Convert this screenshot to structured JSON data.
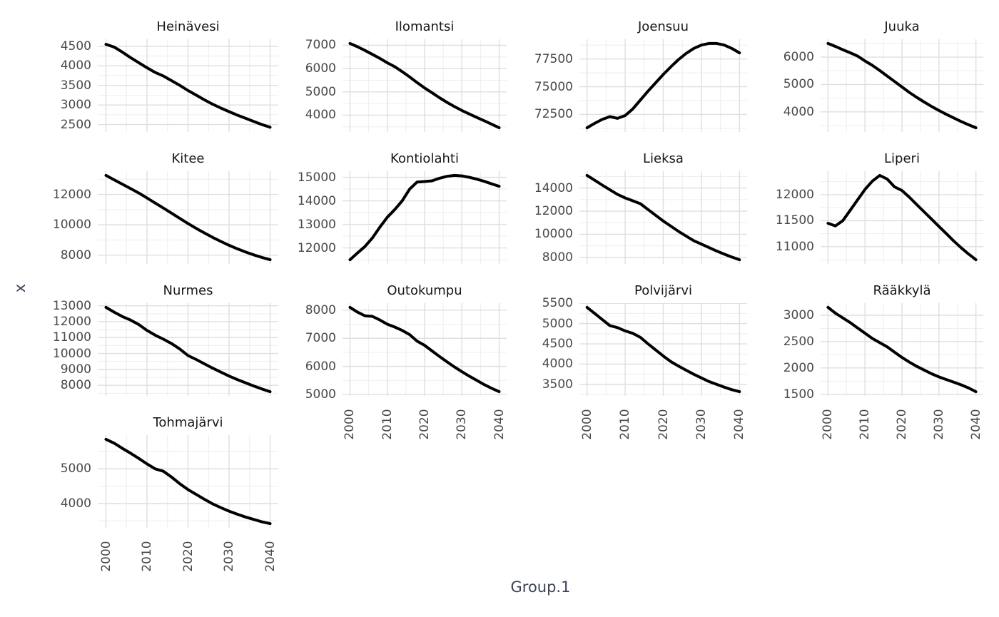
{
  "figure": {
    "y_axis_title": "x",
    "x_axis_title": "Group.1",
    "colors": {
      "background": "#ffffff",
      "line": "#000000",
      "grid_major": "#dfdfdf",
      "grid_minor": "#eeeeee",
      "tick_label": "#4a4a4a",
      "facet_title": "#171717",
      "axis_title": "#3d4257"
    }
  },
  "chart_data": {
    "type": "line",
    "xlabel": "Group.1",
    "ylabel": "x",
    "legend": "none",
    "grid": "major+minor",
    "x": [
      2000,
      2002,
      2004,
      2006,
      2008,
      2010,
      2012,
      2014,
      2016,
      2018,
      2020,
      2022,
      2024,
      2026,
      2028,
      2030,
      2032,
      2034,
      2036,
      2038,
      2040
    ],
    "x_ticks": [
      2000,
      2010,
      2020,
      2030,
      2040
    ],
    "x_minor_ticks": [
      2005,
      2015,
      2025,
      2035
    ],
    "xlim": [
      1998,
      2042
    ],
    "facets": [
      {
        "name": "Heinävesi",
        "y_ticks": [
          2500,
          3000,
          3500,
          4000,
          4500
        ],
        "ylim": [
          2310,
          4680
        ],
        "values": [
          4550,
          4480,
          4350,
          4210,
          4080,
          3950,
          3830,
          3740,
          3620,
          3500,
          3370,
          3250,
          3130,
          3020,
          2920,
          2830,
          2740,
          2660,
          2580,
          2500,
          2430
        ]
      },
      {
        "name": "Ilomantsi",
        "y_ticks": [
          4000,
          5000,
          6000,
          7000
        ],
        "ylim": [
          3280,
          7260
        ],
        "values": [
          7080,
          6940,
          6780,
          6610,
          6440,
          6250,
          6080,
          5870,
          5640,
          5400,
          5170,
          4960,
          4750,
          4550,
          4370,
          4200,
          4050,
          3900,
          3760,
          3610,
          3460
        ]
      },
      {
        "name": "Joensuu",
        "y_ticks": [
          72500,
          75000,
          77500
        ],
        "ylim": [
          70920,
          79280
        ],
        "values": [
          71300,
          71700,
          72050,
          72300,
          72150,
          72400,
          73000,
          73800,
          74600,
          75350,
          76100,
          76800,
          77450,
          78000,
          78450,
          78750,
          78900,
          78900,
          78750,
          78450,
          78050
        ]
      },
      {
        "name": "Juuka",
        "y_ticks": [
          4000,
          5000,
          6000
        ],
        "ylim": [
          3266,
          6654
        ],
        "values": [
          6500,
          6390,
          6270,
          6160,
          6040,
          5860,
          5700,
          5510,
          5310,
          5110,
          4910,
          4710,
          4530,
          4360,
          4200,
          4050,
          3910,
          3780,
          3650,
          3530,
          3420
        ]
      },
      {
        "name": "Kitee",
        "y_ticks": [
          8000,
          10000,
          12000
        ],
        "ylim": [
          7422,
          13528
        ],
        "values": [
          13250,
          12960,
          12670,
          12380,
          12090,
          11760,
          11430,
          11100,
          10760,
          10420,
          10080,
          9760,
          9460,
          9170,
          8900,
          8650,
          8420,
          8210,
          8020,
          7850,
          7700
        ]
      },
      {
        "name": "Kontiolahti",
        "y_ticks": [
          12000,
          13000,
          14000,
          15000
        ],
        "ylim": [
          11321,
          15259
        ],
        "values": [
          11500,
          11780,
          12060,
          12420,
          12880,
          13300,
          13630,
          14000,
          14500,
          14800,
          14820,
          14850,
          14960,
          15040,
          15080,
          15060,
          15000,
          14920,
          14830,
          14720,
          14620
        ]
      },
      {
        "name": "Lieksa",
        "y_ticks": [
          8000,
          10000,
          12000,
          14000
        ],
        "ylim": [
          7435,
          15465
        ],
        "values": [
          15100,
          14680,
          14260,
          13850,
          13450,
          13150,
          12900,
          12650,
          12150,
          11650,
          11150,
          10700,
          10250,
          9850,
          9450,
          9150,
          8850,
          8550,
          8280,
          8030,
          7800
        ]
      },
      {
        "name": "Liperi",
        "y_ticks": [
          11000,
          11500,
          12000
        ],
        "ylim": [
          10669,
          12451
        ],
        "values": [
          11450,
          11400,
          11500,
          11700,
          11900,
          12100,
          12260,
          12370,
          12300,
          12150,
          12080,
          11950,
          11810,
          11670,
          11530,
          11390,
          11250,
          11110,
          10980,
          10860,
          10750
        ]
      },
      {
        "name": "Nurmes",
        "y_ticks": [
          8000,
          9000,
          10000,
          11000,
          12000,
          13000
        ],
        "ylim": [
          7335,
          13165
        ],
        "values": [
          12900,
          12600,
          12320,
          12100,
          11820,
          11450,
          11150,
          10900,
          10620,
          10280,
          9870,
          9620,
          9350,
          9080,
          8830,
          8580,
          8360,
          8160,
          7960,
          7770,
          7600
        ]
      },
      {
        "name": "Outokumpu",
        "y_ticks": [
          5000,
          6000,
          7000,
          8000
        ],
        "ylim": [
          4950,
          8250
        ],
        "values": [
          8100,
          7930,
          7800,
          7780,
          7650,
          7500,
          7400,
          7280,
          7130,
          6900,
          6750,
          6550,
          6350,
          6160,
          5980,
          5810,
          5650,
          5500,
          5350,
          5220,
          5100
        ]
      },
      {
        "name": "Polvijärvi",
        "y_ticks": [
          3500,
          4000,
          4500,
          5000,
          5500
        ],
        "ylim": [
          3216,
          5504
        ],
        "values": [
          5400,
          5250,
          5100,
          4950,
          4900,
          4820,
          4760,
          4660,
          4500,
          4350,
          4200,
          4060,
          3950,
          3850,
          3750,
          3660,
          3570,
          3500,
          3430,
          3370,
          3320
        ]
      },
      {
        "name": "Rääkkylä",
        "y_ticks": [
          1500,
          2000,
          2500,
          3000
        ],
        "ylim": [
          1470,
          3230
        ],
        "values": [
          3150,
          3040,
          2950,
          2860,
          2760,
          2660,
          2560,
          2480,
          2400,
          2300,
          2200,
          2110,
          2030,
          1960,
          1890,
          1830,
          1780,
          1730,
          1680,
          1620,
          1550
        ]
      },
      {
        "name": "Tohmajärvi",
        "y_ticks": [
          4000,
          5000
        ],
        "ylim": [
          3298,
          5972
        ],
        "values": [
          5850,
          5740,
          5590,
          5450,
          5300,
          5140,
          5000,
          4930,
          4760,
          4570,
          4400,
          4260,
          4120,
          3990,
          3880,
          3780,
          3690,
          3610,
          3540,
          3470,
          3420
        ]
      }
    ]
  }
}
